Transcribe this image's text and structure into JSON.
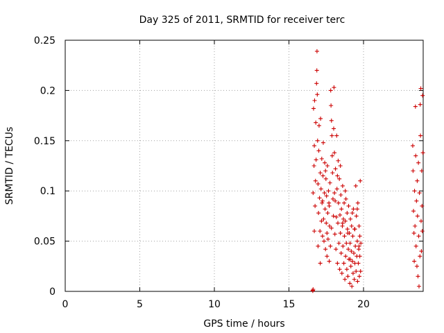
{
  "chart_data": {
    "type": "scatter",
    "title": "Day 325 of 2011, SRMTID for receiver terc",
    "xlabel": "GPS time / hours",
    "ylabel": "SRMTID / TECUs",
    "xlim": [
      0,
      24
    ],
    "ylim": [
      0,
      0.25
    ],
    "xticks": [
      0,
      5,
      10,
      15,
      20
    ],
    "xtick_labels": [
      "0",
      "5",
      "10",
      "15",
      "20"
    ],
    "yticks": [
      0,
      0.05,
      0.1,
      0.15,
      0.2,
      0.25
    ],
    "ytick_labels": [
      "0",
      "0.05",
      "0.1",
      "0.15",
      "0.2",
      "0.25"
    ],
    "grid": true,
    "marker": "+",
    "color": "#cc0000",
    "series": [
      {
        "points": [
          [
            16.6,
            0.001
          ],
          [
            16.6,
            0.0005
          ],
          [
            16.62,
            0.002
          ],
          [
            16.62,
            0.098
          ],
          [
            16.65,
            0.182
          ],
          [
            16.68,
            0.125
          ],
          [
            16.7,
            0.145
          ],
          [
            16.72,
            0.19
          ],
          [
            16.75,
            0.085
          ],
          [
            16.78,
            0.11
          ],
          [
            16.8,
            0.168
          ],
          [
            16.82,
            0.131
          ],
          [
            16.85,
            0.207
          ],
          [
            16.87,
            0.22
          ],
          [
            16.88,
            0.239
          ],
          [
            16.9,
            0.196
          ],
          [
            16.92,
            0.15
          ],
          [
            16.95,
            0.107
          ],
          [
            16.98,
            0.078
          ],
          [
            17.0,
            0.14
          ],
          [
            17.02,
            0.165
          ],
          [
            17.05,
            0.093
          ],
          [
            17.08,
            0.06
          ],
          [
            17.1,
            0.118
          ],
          [
            17.12,
            0.172
          ],
          [
            17.15,
            0.102
          ],
          [
            17.18,
            0.07
          ],
          [
            17.2,
            0.132
          ],
          [
            17.22,
            0.088
          ],
          [
            17.25,
            0.055
          ],
          [
            17.28,
            0.115
          ],
          [
            17.3,
            0.148
          ],
          [
            17.32,
            0.072
          ],
          [
            17.35,
            0.05
          ],
          [
            17.38,
            0.098
          ],
          [
            17.4,
            0.128
          ],
          [
            17.42,
            0.082
          ],
          [
            17.45,
            0.042
          ],
          [
            17.48,
            0.112
          ],
          [
            17.5,
            0.068
          ],
          [
            17.52,
            0.095
          ],
          [
            17.55,
            0.035
          ],
          [
            17.58,
            0.125
          ],
          [
            17.6,
            0.078
          ],
          [
            17.62,
            0.052
          ],
          [
            17.65,
            0.1
          ],
          [
            17.68,
            0.088
          ],
          [
            17.7,
            0.03
          ],
          [
            17.72,
            0.065
          ],
          [
            17.75,
            0.108
          ],
          [
            17.78,
            0.045
          ],
          [
            17.8,
            0.2
          ],
          [
            17.82,
            0.185
          ],
          [
            17.85,
            0.17
          ],
          [
            17.88,
            0.155
          ],
          [
            17.9,
            0.135
          ],
          [
            17.92,
            0.118
          ],
          [
            17.95,
            0.092
          ],
          [
            17.98,
            0.075
          ],
          [
            18.0,
            0.162
          ],
          [
            18.02,
            0.203
          ],
          [
            18.05,
            0.138
          ],
          [
            18.08,
            0.057
          ],
          [
            18.1,
            0.09
          ],
          [
            18.12,
            0.122
          ],
          [
            18.15,
            0.042
          ],
          [
            18.18,
            0.074
          ],
          [
            18.2,
            0.155
          ],
          [
            18.22,
            0.102
          ],
          [
            18.25,
            0.028
          ],
          [
            18.28,
            0.068
          ],
          [
            18.3,
            0.13
          ],
          [
            18.32,
            0.088
          ],
          [
            18.35,
            0.048
          ],
          [
            18.38,
            0.112
          ],
          [
            18.4,
            0.022
          ],
          [
            18.42,
            0.076
          ],
          [
            18.45,
            0.058
          ],
          [
            18.48,
            0.096
          ],
          [
            18.5,
            0.038
          ],
          [
            18.52,
            0.082
          ],
          [
            18.55,
            0.018
          ],
          [
            18.58,
            0.065
          ],
          [
            18.6,
            0.105
          ],
          [
            18.62,
            0.045
          ],
          [
            18.65,
            0.072
          ],
          [
            18.68,
            0.028
          ],
          [
            18.7,
            0.088
          ],
          [
            18.72,
            0.055
          ],
          [
            18.75,
            0.012
          ],
          [
            18.78,
            0.07
          ],
          [
            18.8,
            0.035
          ],
          [
            18.82,
            0.092
          ],
          [
            18.85,
            0.048
          ],
          [
            18.88,
            0.022
          ],
          [
            18.9,
            0.078
          ],
          [
            18.92,
            0.062
          ],
          [
            18.95,
            0.015
          ],
          [
            18.98,
            0.042
          ],
          [
            19.0,
            0.085
          ],
          [
            19.02,
            0.032
          ],
          [
            19.05,
            0.058
          ],
          [
            19.08,
            0.008
          ],
          [
            19.1,
            0.048
          ],
          [
            19.12,
            0.072
          ],
          [
            19.15,
            0.025
          ],
          [
            19.18,
            0.04
          ],
          [
            19.2,
            0.065
          ],
          [
            19.22,
            0.005
          ],
          [
            19.25,
            0.03
          ],
          [
            19.28,
            0.055
          ],
          [
            19.3,
            0.018
          ],
          [
            19.32,
            0.082
          ],
          [
            19.35,
            0.038
          ],
          [
            19.38,
            0.012
          ],
          [
            19.4,
            0.062
          ],
          [
            19.42,
            0.028
          ],
          [
            19.45,
            0.045
          ],
          [
            19.48,
            0.105
          ],
          [
            19.5,
            0.02
          ],
          [
            19.52,
            0.075
          ],
          [
            19.55,
            0.035
          ],
          [
            19.58,
            0.05
          ],
          [
            19.6,
            0.01
          ],
          [
            19.62,
            0.088
          ],
          [
            19.65,
            0.028
          ],
          [
            19.68,
            0.042
          ],
          [
            19.7,
            0.065
          ],
          [
            19.72,
            0.015
          ],
          [
            19.75,
            0.035
          ],
          [
            19.78,
            0.11
          ],
          [
            19.8,
            0.02
          ],
          [
            19.82,
            0.048
          ],
          [
            16.7,
            0.06
          ],
          [
            16.95,
            0.045
          ],
          [
            17.1,
            0.028
          ],
          [
            17.25,
            0.09
          ],
          [
            17.45,
            0.12
          ],
          [
            17.55,
            0.058
          ],
          [
            17.7,
            0.085
          ],
          [
            17.85,
            0.063
          ],
          [
            18.05,
            0.098
          ],
          [
            18.25,
            0.115
          ],
          [
            18.45,
            0.125
          ],
          [
            18.6,
            0.068
          ],
          [
            18.78,
            0.1
          ],
          [
            18.95,
            0.058
          ],
          [
            19.1,
            0.032
          ],
          [
            19.25,
            0.078
          ],
          [
            19.42,
            0.062
          ],
          [
            19.58,
            0.082
          ],
          [
            19.7,
            0.045
          ],
          [
            19.75,
            0.055
          ],
          [
            23.3,
            0.145
          ],
          [
            23.32,
            0.12
          ],
          [
            23.35,
            0.08
          ],
          [
            23.38,
            0.058
          ],
          [
            23.4,
            0.03
          ],
          [
            23.42,
            0.1
          ],
          [
            23.45,
            0.065
          ],
          [
            23.48,
            0.184
          ],
          [
            23.5,
            0.135
          ],
          [
            23.52,
            0.045
          ],
          [
            23.55,
            0.09
          ],
          [
            23.58,
            0.025
          ],
          [
            23.6,
            0.11
          ],
          [
            23.62,
            0.075
          ],
          [
            23.65,
            0.015
          ],
          [
            23.68,
            0.128
          ],
          [
            23.7,
            0.055
          ],
          [
            23.72,
            0.005
          ],
          [
            23.75,
            0.098
          ],
          [
            23.78,
            0.035
          ],
          [
            23.8,
            0.186
          ],
          [
            23.82,
            0.155
          ],
          [
            23.84,
            0.202
          ],
          [
            23.86,
            0.07
          ],
          [
            23.88,
            0.04
          ],
          [
            23.9,
            0.12
          ],
          [
            23.92,
            0.085
          ],
          [
            23.94,
            0.06
          ],
          [
            23.96,
            0.195
          ],
          [
            23.98,
            0.138
          ]
        ]
      }
    ]
  }
}
